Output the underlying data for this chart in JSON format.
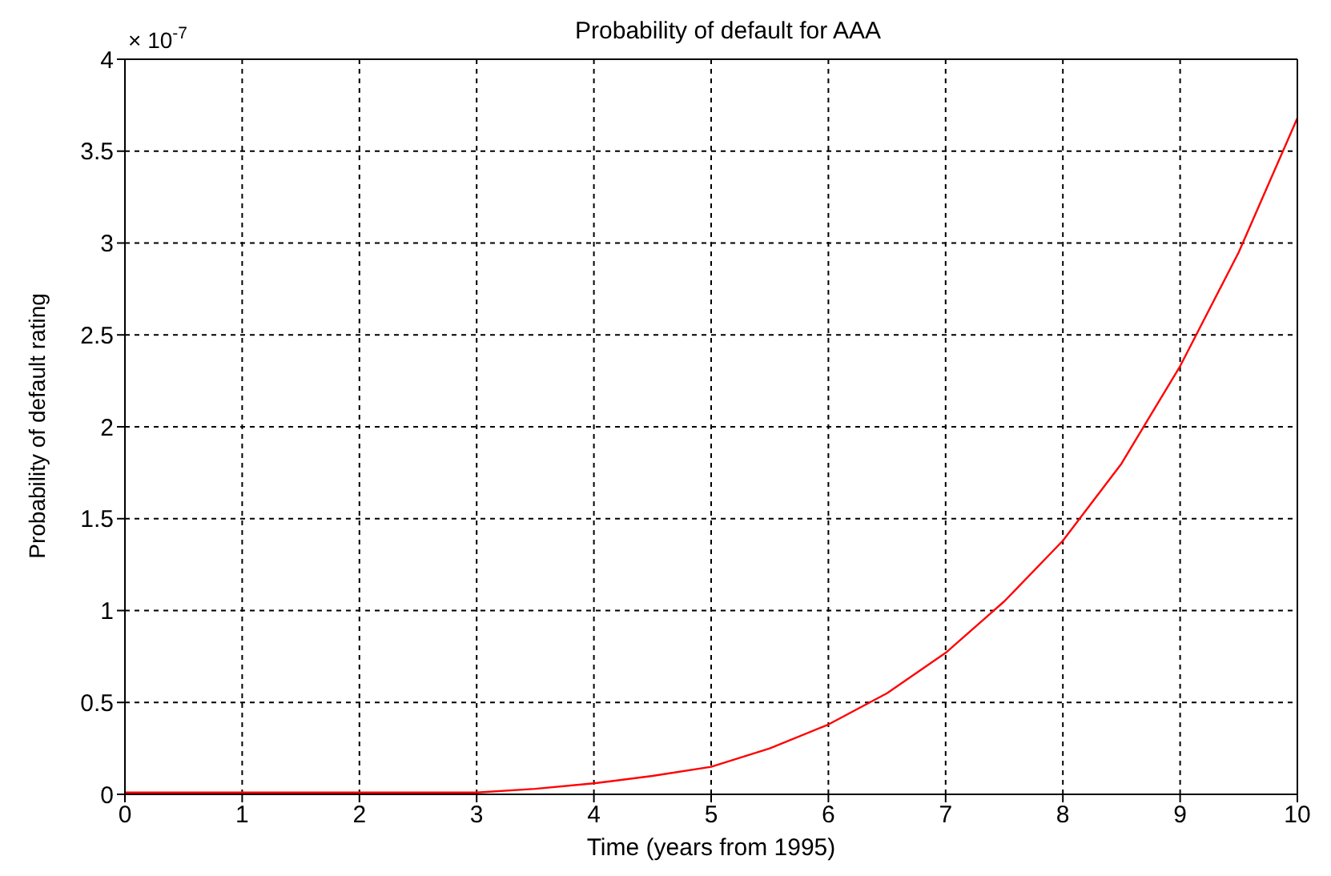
{
  "chart_data": {
    "type": "line",
    "title": "Probability of default for AAA",
    "xlabel": "Time (years from 1995)",
    "ylabel": "Probability of default rating",
    "annotations": [
      "× 10$^{-7}$"
    ],
    "x": [
      0,
      0.5,
      1,
      1.5,
      2,
      2.5,
      3,
      3.5,
      4,
      4.5,
      5,
      5.5,
      6,
      6.5,
      7,
      7.5,
      8,
      8.5,
      9,
      9.5,
      10
    ],
    "series": [
      {
        "color": "#ff0000",
        "values": [
          0.01,
          0.01,
          0.01,
          0.01,
          0.01,
          0.01,
          0.01,
          0.03,
          0.06,
          0.1,
          0.15,
          0.25,
          0.38,
          0.55,
          0.77,
          1.05,
          1.38,
          1.8,
          2.33,
          2.95,
          3.68
        ]
      }
    ],
    "xlim": [
      0,
      10
    ],
    "xticks": [
      0,
      1,
      2,
      3,
      4,
      5,
      6,
      7,
      8,
      9,
      10
    ],
    "ylim": [
      0,
      4
    ],
    "yticks": [
      0,
      0.5,
      1,
      1.5,
      2,
      2.5,
      3,
      3.5,
      4
    ],
    "grid": true,
    "marker": "none",
    "line_style": "solid"
  }
}
